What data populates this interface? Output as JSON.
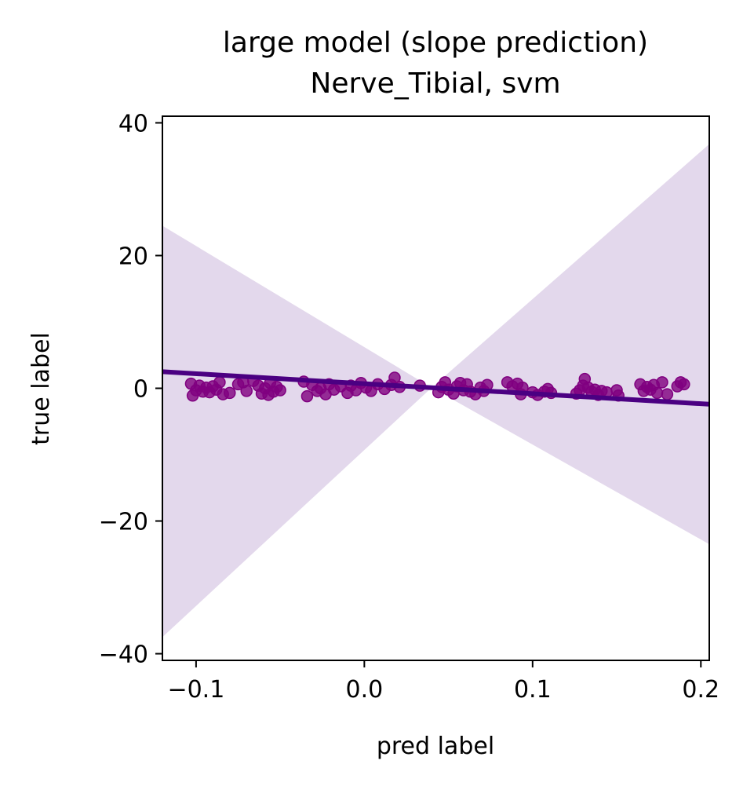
{
  "chart_data": {
    "type": "scatter",
    "title": "large model (slope prediction)",
    "subtitle": "Nerve_Tibial, svm",
    "xlabel": "pred label",
    "ylabel": "true label",
    "xlim": [
      -0.12,
      0.205
    ],
    "ylim": [
      -41,
      41
    ],
    "xticks": [
      -0.1,
      0.0,
      0.1,
      0.2
    ],
    "xtick_labels": [
      "−0.1",
      "0.0",
      "0.1",
      "0.2"
    ],
    "yticks": [
      40,
      20,
      0,
      -20,
      -40
    ],
    "ytick_labels": [
      "40",
      "20",
      "0",
      "−20",
      "−40"
    ],
    "grid": false,
    "regression_line": {
      "x": [
        -0.12,
        0.205
      ],
      "y": [
        2.5,
        -2.4
      ]
    },
    "confidence_band": {
      "x": [
        -0.12,
        0.04,
        0.205
      ],
      "upper": [
        24.5,
        0.1,
        36.8
      ],
      "lower": [
        -37.5,
        0.1,
        -23.5
      ]
    },
    "points": [
      {
        "x": -0.103,
        "y": 0.7
      },
      {
        "x": -0.102,
        "y": -1.1
      },
      {
        "x": -0.1,
        "y": -0.3
      },
      {
        "x": -0.098,
        "y": 0.4
      },
      {
        "x": -0.096,
        "y": -0.5
      },
      {
        "x": -0.094,
        "y": 0.1
      },
      {
        "x": -0.092,
        "y": -0.6
      },
      {
        "x": -0.09,
        "y": 0.3
      },
      {
        "x": -0.088,
        "y": -0.2
      },
      {
        "x": -0.086,
        "y": 0.9
      },
      {
        "x": -0.084,
        "y": -0.9
      },
      {
        "x": -0.08,
        "y": -0.7
      },
      {
        "x": -0.075,
        "y": 0.6
      },
      {
        "x": -0.072,
        "y": 0.9
      },
      {
        "x": -0.07,
        "y": -0.4
      },
      {
        "x": -0.066,
        "y": 1.1
      },
      {
        "x": -0.063,
        "y": 0.4
      },
      {
        "x": -0.061,
        "y": -0.8
      },
      {
        "x": -0.059,
        "y": 0.0
      },
      {
        "x": -0.057,
        "y": -1.0
      },
      {
        "x": -0.056,
        "y": 0.8
      },
      {
        "x": -0.054,
        "y": -0.5
      },
      {
        "x": -0.052,
        "y": 0.2
      },
      {
        "x": -0.05,
        "y": -0.3
      },
      {
        "x": -0.036,
        "y": 1.0
      },
      {
        "x": -0.034,
        "y": -1.2
      },
      {
        "x": -0.031,
        "y": 0.5
      },
      {
        "x": -0.028,
        "y": -0.4
      },
      {
        "x": -0.026,
        "y": 0.0
      },
      {
        "x": -0.023,
        "y": -0.9
      },
      {
        "x": -0.021,
        "y": 0.6
      },
      {
        "x": -0.018,
        "y": -0.2
      },
      {
        "x": -0.014,
        "y": 0.3
      },
      {
        "x": -0.01,
        "y": -0.7
      },
      {
        "x": -0.008,
        "y": 0.4
      },
      {
        "x": -0.005,
        "y": -0.3
      },
      {
        "x": -0.002,
        "y": 0.8
      },
      {
        "x": 0.001,
        "y": 0.1
      },
      {
        "x": 0.004,
        "y": -0.4
      },
      {
        "x": 0.008,
        "y": 0.6
      },
      {
        "x": 0.012,
        "y": -0.1
      },
      {
        "x": 0.016,
        "y": 0.5
      },
      {
        "x": 0.018,
        "y": 1.6
      },
      {
        "x": 0.021,
        "y": 0.2
      },
      {
        "x": 0.033,
        "y": 0.4
      },
      {
        "x": 0.044,
        "y": -0.6
      },
      {
        "x": 0.046,
        "y": 0.2
      },
      {
        "x": 0.048,
        "y": 0.9
      },
      {
        "x": 0.05,
        "y": -0.2
      },
      {
        "x": 0.053,
        "y": -0.8
      },
      {
        "x": 0.055,
        "y": 0.3
      },
      {
        "x": 0.057,
        "y": 0.8
      },
      {
        "x": 0.059,
        "y": -0.3
      },
      {
        "x": 0.061,
        "y": 0.6
      },
      {
        "x": 0.063,
        "y": -0.5
      },
      {
        "x": 0.066,
        "y": -0.9
      },
      {
        "x": 0.069,
        "y": 0.1
      },
      {
        "x": 0.071,
        "y": -0.4
      },
      {
        "x": 0.073,
        "y": 0.5
      },
      {
        "x": 0.085,
        "y": 0.9
      },
      {
        "x": 0.088,
        "y": 0.3
      },
      {
        "x": 0.091,
        "y": 0.7
      },
      {
        "x": 0.094,
        "y": 0.1
      },
      {
        "x": 0.093,
        "y": -0.9
      },
      {
        "x": 0.1,
        "y": -0.6
      },
      {
        "x": 0.103,
        "y": -1.0
      },
      {
        "x": 0.107,
        "y": -0.5
      },
      {
        "x": 0.109,
        "y": -0.1
      },
      {
        "x": 0.111,
        "y": -0.7
      },
      {
        "x": 0.126,
        "y": -0.8
      },
      {
        "x": 0.128,
        "y": -0.3
      },
      {
        "x": 0.13,
        "y": 0.4
      },
      {
        "x": 0.131,
        "y": 1.4
      },
      {
        "x": 0.133,
        "y": 0.1
      },
      {
        "x": 0.135,
        "y": -0.5
      },
      {
        "x": 0.137,
        "y": -0.2
      },
      {
        "x": 0.139,
        "y": -1.0
      },
      {
        "x": 0.141,
        "y": -0.4
      },
      {
        "x": 0.144,
        "y": -0.6
      },
      {
        "x": 0.15,
        "y": -0.3
      },
      {
        "x": 0.151,
        "y": -1.1
      },
      {
        "x": 0.164,
        "y": 0.6
      },
      {
        "x": 0.166,
        "y": -0.4
      },
      {
        "x": 0.168,
        "y": 0.2
      },
      {
        "x": 0.17,
        "y": -0.2
      },
      {
        "x": 0.172,
        "y": 0.5
      },
      {
        "x": 0.174,
        "y": -0.7
      },
      {
        "x": 0.177,
        "y": 0.9
      },
      {
        "x": 0.18,
        "y": -0.9
      },
      {
        "x": 0.186,
        "y": 0.3
      },
      {
        "x": 0.188,
        "y": 0.9
      },
      {
        "x": 0.19,
        "y": 0.6
      }
    ],
    "colors": {
      "points": "#800080",
      "regression_line": "#4b0082",
      "confidence_band": "#e3d8ec"
    }
  }
}
